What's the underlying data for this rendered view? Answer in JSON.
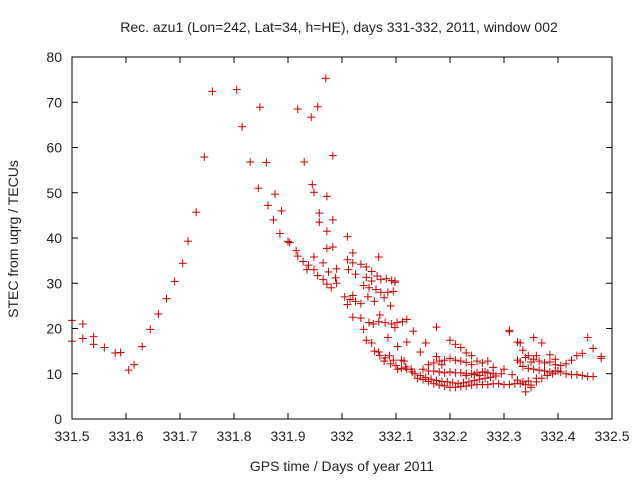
{
  "chart_data": {
    "type": "scatter",
    "title": "Rec. azu1 (Lon=242, Lat=34, h=HE), days 331-332, 2011, window 002",
    "xlabel": "GPS time / Days of year 2011",
    "ylabel": "STEC from uqrg / TECUs",
    "xlim": [
      331.5,
      332.5
    ],
    "ylim": [
      0,
      80
    ],
    "x_ticks": [
      "331.5",
      "331.6",
      "331.7",
      "331.8",
      "331.9",
      "332",
      "332.1",
      "332.2",
      "332.3",
      "332.4",
      "332.5"
    ],
    "y_ticks": [
      "0",
      "10",
      "20",
      "30",
      "40",
      "50",
      "60",
      "70",
      "80"
    ],
    "grid": false,
    "legend": "none",
    "marker": "plus",
    "color": "#cc0000",
    "series": [
      {
        "points": [
          [
            331.5,
            21.8
          ],
          [
            331.52,
            21.0
          ],
          [
            331.54,
            18.2
          ],
          [
            331.5,
            17.2
          ],
          [
            331.52,
            17.8
          ],
          [
            331.54,
            16.5
          ],
          [
            331.56,
            15.8
          ],
          [
            331.58,
            14.6
          ],
          [
            331.59,
            14.7
          ],
          [
            331.605,
            10.8
          ],
          [
            331.615,
            12.0
          ],
          [
            331.63,
            16.0
          ],
          [
            331.645,
            19.8
          ],
          [
            331.66,
            23.2
          ],
          [
            331.675,
            26.6
          ],
          [
            331.69,
            30.4
          ],
          [
            331.705,
            34.4
          ],
          [
            331.715,
            39.3
          ],
          [
            331.73,
            45.7
          ],
          [
            331.745,
            57.9
          ],
          [
            331.76,
            72.4
          ],
          [
            331.805,
            72.8
          ],
          [
            331.815,
            64.6
          ],
          [
            331.83,
            56.8
          ],
          [
            331.848,
            68.9
          ],
          [
            331.86,
            56.7
          ],
          [
            331.845,
            51.0
          ],
          [
            331.863,
            47.2
          ],
          [
            331.876,
            49.7
          ],
          [
            331.873,
            44.0
          ],
          [
            331.888,
            46.0
          ],
          [
            331.885,
            41.0
          ],
          [
            331.9,
            39.2
          ],
          [
            331.903,
            39.0
          ],
          [
            331.918,
            68.5
          ],
          [
            331.93,
            56.8
          ],
          [
            331.943,
            66.7
          ],
          [
            331.955,
            69.0
          ],
          [
            331.97,
            75.3
          ],
          [
            331.983,
            58.2
          ],
          [
            331.945,
            51.8
          ],
          [
            331.948,
            50.1
          ],
          [
            331.958,
            45.5
          ],
          [
            331.958,
            43.5
          ],
          [
            331.972,
            49.2
          ],
          [
            331.972,
            41.5
          ],
          [
            331.983,
            44.0
          ],
          [
            331.972,
            37.7
          ],
          [
            331.983,
            38.0
          ],
          [
            331.915,
            37.2
          ],
          [
            331.918,
            36.0
          ],
          [
            331.928,
            34.8
          ],
          [
            331.938,
            34.0
          ],
          [
            331.948,
            33.0
          ],
          [
            331.955,
            31.7
          ],
          [
            331.965,
            30.8
          ],
          [
            331.972,
            29.8
          ],
          [
            331.98,
            29.0
          ],
          [
            331.99,
            30.0
          ],
          [
            331.988,
            31.2
          ],
          [
            331.975,
            32.5
          ],
          [
            331.965,
            34.5
          ],
          [
            331.948,
            35.8
          ],
          [
            331.935,
            33.0
          ],
          [
            331.99,
            33.2
          ],
          [
            332.01,
            40.3
          ],
          [
            332.02,
            36.7
          ],
          [
            332.02,
            34.5
          ],
          [
            332.035,
            34.2
          ],
          [
            332.045,
            33.6
          ],
          [
            332.055,
            32.6
          ],
          [
            332.065,
            31.6
          ],
          [
            332.072,
            30.8
          ],
          [
            332.082,
            31.0
          ],
          [
            332.092,
            30.6
          ],
          [
            332.098,
            30.5
          ],
          [
            332.045,
            31.3
          ],
          [
            332.055,
            30.5
          ],
          [
            332.01,
            35.2
          ],
          [
            332.012,
            33.0
          ],
          [
            332.025,
            32.0
          ],
          [
            332.04,
            29.5
          ],
          [
            332.05,
            29.0
          ],
          [
            332.063,
            28.6
          ],
          [
            332.072,
            28.0
          ],
          [
            332.085,
            28.0
          ],
          [
            332.095,
            28.2
          ],
          [
            332.098,
            30.2
          ],
          [
            332.005,
            27.0
          ],
          [
            332.015,
            26.4
          ],
          [
            332.025,
            26.0
          ],
          [
            332.035,
            25.5
          ],
          [
            332.048,
            27.0
          ],
          [
            332.06,
            26.0
          ],
          [
            332.068,
            35.8
          ],
          [
            332.078,
            26.8
          ],
          [
            332.09,
            25.0
          ],
          [
            332.01,
            25.3
          ],
          [
            332.02,
            27.3
          ],
          [
            332.02,
            22.5
          ],
          [
            332.035,
            22.3
          ],
          [
            332.04,
            19.8
          ],
          [
            332.05,
            21.3
          ],
          [
            332.058,
            21.0
          ],
          [
            332.068,
            21.5
          ],
          [
            332.08,
            21.3
          ],
          [
            332.092,
            21.0
          ],
          [
            332.102,
            21.3
          ],
          [
            332.112,
            21.5
          ],
          [
            332.12,
            22.0
          ],
          [
            332.07,
            23.0
          ],
          [
            332.098,
            20.2
          ],
          [
            332.045,
            17.4
          ],
          [
            332.055,
            16.8
          ],
          [
            332.068,
            14.8
          ],
          [
            332.08,
            13.5
          ],
          [
            332.09,
            12.2
          ],
          [
            332.1,
            11.8
          ],
          [
            332.11,
            11.2
          ],
          [
            332.12,
            11.0
          ],
          [
            332.13,
            10.4
          ],
          [
            332.088,
            14.0
          ],
          [
            332.103,
            16.0
          ],
          [
            332.115,
            12.8
          ],
          [
            332.132,
            19.4
          ],
          [
            332.12,
            17.0
          ],
          [
            332.085,
            18.0
          ],
          [
            332.07,
            14.0
          ],
          [
            332.078,
            12.8
          ],
          [
            332.095,
            13.0
          ],
          [
            332.103,
            11.0
          ],
          [
            332.11,
            13.0
          ],
          [
            332.118,
            11.5
          ],
          [
            332.128,
            11.0
          ],
          [
            332.06,
            15.0
          ],
          [
            332.135,
            10.0
          ],
          [
            332.145,
            9.6
          ],
          [
            332.155,
            9.2
          ],
          [
            332.165,
            8.8
          ],
          [
            332.175,
            8.5
          ],
          [
            332.185,
            8.3
          ],
          [
            332.195,
            8.2
          ],
          [
            332.205,
            8.0
          ],
          [
            332.215,
            7.8
          ],
          [
            332.225,
            8.0
          ],
          [
            332.235,
            8.2
          ],
          [
            332.245,
            8.5
          ],
          [
            332.255,
            8.8
          ],
          [
            332.265,
            9.0
          ],
          [
            332.275,
            9.2
          ],
          [
            332.285,
            9.5
          ],
          [
            332.295,
            10.0
          ],
          [
            332.14,
            9.0
          ],
          [
            332.15,
            8.7
          ],
          [
            332.16,
            8.3
          ],
          [
            332.17,
            7.8
          ],
          [
            332.18,
            7.5
          ],
          [
            332.19,
            7.3
          ],
          [
            332.2,
            7.0
          ],
          [
            332.21,
            7.0
          ],
          [
            332.22,
            7.2
          ],
          [
            332.23,
            7.3
          ],
          [
            332.24,
            7.5
          ],
          [
            332.25,
            7.6
          ],
          [
            332.26,
            7.6
          ],
          [
            332.27,
            7.6
          ],
          [
            332.28,
            7.8
          ],
          [
            332.29,
            7.8
          ],
          [
            332.3,
            7.6
          ],
          [
            332.31,
            7.6
          ],
          [
            332.32,
            7.8
          ],
          [
            332.33,
            7.8
          ],
          [
            332.34,
            7.6
          ],
          [
            332.35,
            7.5
          ],
          [
            332.15,
            11.0
          ],
          [
            332.16,
            10.6
          ],
          [
            332.17,
            10.6
          ],
          [
            332.18,
            10.4
          ],
          [
            332.19,
            10.2
          ],
          [
            332.2,
            10.4
          ],
          [
            332.21,
            10.2
          ],
          [
            332.22,
            10.2
          ],
          [
            332.23,
            10.0
          ],
          [
            332.24,
            10.0
          ],
          [
            332.25,
            10.2
          ],
          [
            332.26,
            10.4
          ],
          [
            332.27,
            10.2
          ],
          [
            332.28,
            10.0
          ],
          [
            332.16,
            12.0
          ],
          [
            332.17,
            12.4
          ],
          [
            332.18,
            12.8
          ],
          [
            332.19,
            13.0
          ],
          [
            332.2,
            13.4
          ],
          [
            332.21,
            13.0
          ],
          [
            332.22,
            12.8
          ],
          [
            332.23,
            12.5
          ],
          [
            332.24,
            12.0
          ],
          [
            332.25,
            12.8
          ],
          [
            332.26,
            12.4
          ],
          [
            332.27,
            12.8
          ],
          [
            332.28,
            11.4
          ],
          [
            332.175,
            20.3
          ],
          [
            332.2,
            17.4
          ],
          [
            332.21,
            16.5
          ],
          [
            332.22,
            15.8
          ],
          [
            332.23,
            14.6
          ],
          [
            332.24,
            14.0
          ],
          [
            332.175,
            13.8
          ],
          [
            332.185,
            12.0
          ],
          [
            332.155,
            16.8
          ],
          [
            332.145,
            14.8
          ],
          [
            332.23,
            9.6
          ],
          [
            332.245,
            9.8
          ],
          [
            332.255,
            9.6
          ],
          [
            332.265,
            10.4
          ],
          [
            332.31,
            19.6
          ],
          [
            332.31,
            19.3
          ],
          [
            332.325,
            17.0
          ],
          [
            332.33,
            16.8
          ],
          [
            332.335,
            15.2
          ],
          [
            332.345,
            14.0
          ],
          [
            332.355,
            13.2
          ],
          [
            332.365,
            12.8
          ],
          [
            332.375,
            12.4
          ],
          [
            332.385,
            12.6
          ],
          [
            332.395,
            12.0
          ],
          [
            332.405,
            11.8
          ],
          [
            332.415,
            12.2
          ],
          [
            332.425,
            13.0
          ],
          [
            332.435,
            14.0
          ],
          [
            332.445,
            14.5
          ],
          [
            332.455,
            18.0
          ],
          [
            332.465,
            15.6
          ],
          [
            332.48,
            13.8
          ],
          [
            332.48,
            13.4
          ],
          [
            332.325,
            13.0
          ],
          [
            332.33,
            12.6
          ],
          [
            332.335,
            11.6
          ],
          [
            332.345,
            11.2
          ],
          [
            332.355,
            11.0
          ],
          [
            332.365,
            10.8
          ],
          [
            332.375,
            10.6
          ],
          [
            332.385,
            10.4
          ],
          [
            332.395,
            10.6
          ],
          [
            332.405,
            10.4
          ],
          [
            332.415,
            10.0
          ],
          [
            332.425,
            9.8
          ],
          [
            332.435,
            9.8
          ],
          [
            332.445,
            9.6
          ],
          [
            332.455,
            9.4
          ],
          [
            332.465,
            9.4
          ],
          [
            332.3,
            11.0
          ],
          [
            332.315,
            9.8
          ],
          [
            332.325,
            8.6
          ],
          [
            332.335,
            8.2
          ],
          [
            332.34,
            6.0
          ],
          [
            332.35,
            7.0
          ],
          [
            332.36,
            8.2
          ],
          [
            332.37,
            9.0
          ],
          [
            332.38,
            9.6
          ],
          [
            332.39,
            10.0
          ],
          [
            332.4,
            10.6
          ],
          [
            332.36,
            14.0
          ],
          [
            332.355,
            18.0
          ],
          [
            332.37,
            16.8
          ],
          [
            332.385,
            14.2
          ],
          [
            332.395,
            13.2
          ],
          [
            332.34,
            13.6
          ],
          [
            332.35,
            12.6
          ],
          [
            332.36,
            9.0
          ],
          [
            332.345,
            8.4
          ]
        ]
      }
    ]
  }
}
